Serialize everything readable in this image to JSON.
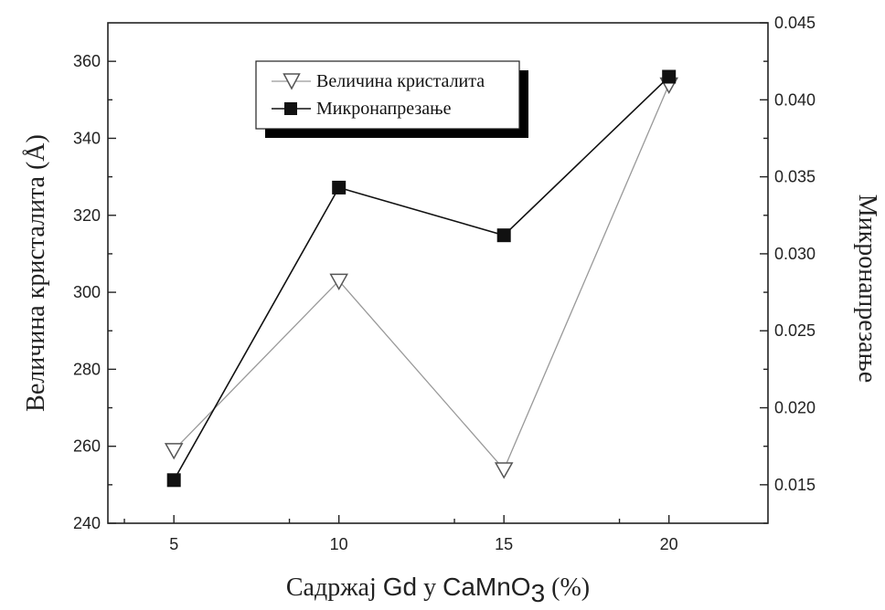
{
  "chart_data": {
    "type": "line",
    "x": [
      5,
      10,
      15,
      20
    ],
    "xlim": [
      3,
      23
    ],
    "x_ticks": [
      "5",
      "10",
      "15",
      "20"
    ],
    "xlabel": {
      "part1": "Садржај ",
      "part2": "Gd",
      "part3": " у ",
      "part4": "CaMnO",
      "sub": "3",
      "part5": " (%)"
    },
    "ylabel_left": "Величина кристалита (Å)",
    "ylabel_right": "Микронапрезање",
    "ylim_left": [
      240,
      370
    ],
    "y_ticks_left": [
      "240",
      "260",
      "280",
      "300",
      "320",
      "340",
      "360"
    ],
    "ylim_right": [
      0.0125,
      0.045
    ],
    "y_ticks_right": [
      "0.015",
      "0.020",
      "0.025",
      "0.030",
      "0.035",
      "0.040",
      "0.045"
    ],
    "series": [
      {
        "name": "Величина кристалита",
        "axis": "left",
        "marker": "open-triangle-down",
        "color": "#999999",
        "values": [
          259,
          303,
          254,
          354
        ]
      },
      {
        "name": "Микронапрезање",
        "axis": "right",
        "marker": "filled-square",
        "color": "#111111",
        "values": [
          0.0153,
          0.0343,
          0.0312,
          0.0415
        ]
      }
    ],
    "legend_position": "top-center",
    "grid": false
  }
}
